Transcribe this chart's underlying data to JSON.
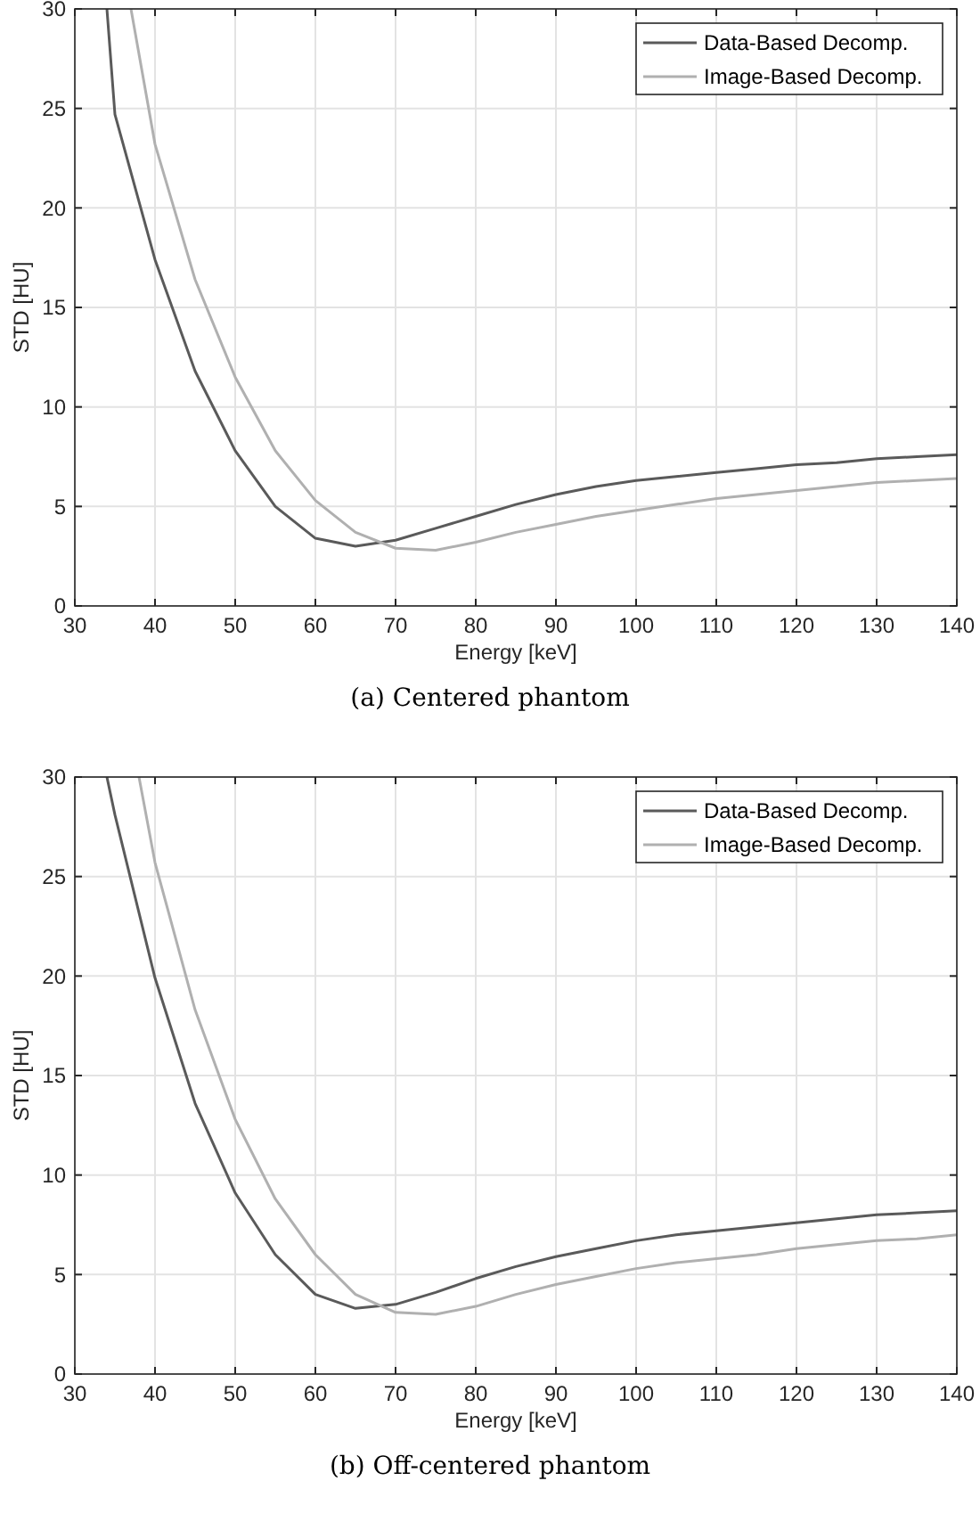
{
  "chart_data": [
    {
      "type": "line",
      "title": "(a) Centered phantom",
      "xlabel": "Energy [keV]",
      "ylabel": "STD [HU]",
      "xlim": [
        30,
        140
      ],
      "ylim": [
        0,
        30
      ],
      "xticks": [
        30,
        40,
        50,
        60,
        70,
        80,
        90,
        100,
        110,
        120,
        130,
        140
      ],
      "yticks": [
        0,
        5,
        10,
        15,
        20,
        25,
        30
      ],
      "grid": true,
      "legend": "top right",
      "series": [
        {
          "name": "Data-Based Decomp.",
          "color": "#5a5a5a",
          "x": [
            34,
            35,
            40,
            45,
            50,
            55,
            60,
            65,
            70,
            75,
            80,
            85,
            90,
            95,
            100,
            105,
            110,
            115,
            120,
            125,
            130,
            135,
            140
          ],
          "values": [
            30,
            24.7,
            17.4,
            11.8,
            7.8,
            5.0,
            3.4,
            3.0,
            3.3,
            3.9,
            4.5,
            5.1,
            5.6,
            6.0,
            6.3,
            6.5,
            6.7,
            6.9,
            7.1,
            7.2,
            7.4,
            7.5,
            7.6
          ]
        },
        {
          "name": "Image-Based Decomp.",
          "color": "#b0b0b0",
          "x": [
            37,
            40,
            45,
            50,
            55,
            60,
            65,
            70,
            75,
            80,
            85,
            90,
            95,
            100,
            105,
            110,
            115,
            120,
            125,
            130,
            135,
            140
          ],
          "values": [
            30,
            23.2,
            16.4,
            11.5,
            7.8,
            5.3,
            3.7,
            2.9,
            2.8,
            3.2,
            3.7,
            4.1,
            4.5,
            4.8,
            5.1,
            5.4,
            5.6,
            5.8,
            6.0,
            6.2,
            6.3,
            6.4
          ]
        }
      ]
    },
    {
      "type": "line",
      "title": "(b) Off-centered phantom",
      "xlabel": "Energy [keV]",
      "ylabel": "STD [HU]",
      "xlim": [
        30,
        140
      ],
      "ylim": [
        0,
        30
      ],
      "xticks": [
        30,
        40,
        50,
        60,
        70,
        80,
        90,
        100,
        110,
        120,
        130,
        140
      ],
      "yticks": [
        0,
        5,
        10,
        15,
        20,
        25,
        30
      ],
      "grid": true,
      "legend": "top right",
      "series": [
        {
          "name": "Data-Based Decomp.",
          "color": "#5a5a5a",
          "x": [
            34,
            35,
            40,
            45,
            50,
            55,
            60,
            65,
            70,
            75,
            80,
            85,
            90,
            95,
            100,
            105,
            110,
            115,
            120,
            125,
            130,
            135,
            140
          ],
          "values": [
            30,
            28.1,
            19.9,
            13.6,
            9.1,
            6.0,
            4.0,
            3.3,
            3.5,
            4.1,
            4.8,
            5.4,
            5.9,
            6.3,
            6.7,
            7.0,
            7.2,
            7.4,
            7.6,
            7.8,
            8.0,
            8.1,
            8.2
          ]
        },
        {
          "name": "Image-Based Decomp.",
          "color": "#b0b0b0",
          "x": [
            38,
            40,
            45,
            50,
            55,
            60,
            65,
            70,
            75,
            80,
            85,
            90,
            95,
            100,
            105,
            110,
            115,
            120,
            125,
            130,
            135,
            140
          ],
          "values": [
            30,
            25.7,
            18.3,
            12.8,
            8.8,
            6.0,
            4.0,
            3.1,
            3.0,
            3.4,
            4.0,
            4.5,
            4.9,
            5.3,
            5.6,
            5.8,
            6.0,
            6.3,
            6.5,
            6.7,
            6.8,
            7.0
          ]
        }
      ]
    }
  ]
}
